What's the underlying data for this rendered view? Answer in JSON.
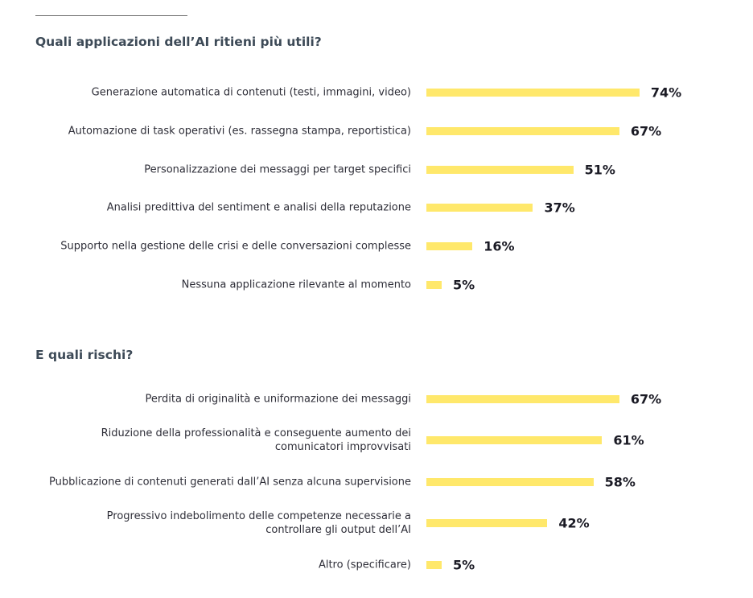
{
  "chart_data": [
    {
      "type": "bar",
      "orientation": "horizontal",
      "title": "Quali applicazioni dell’AI ritieni più utili?",
      "unit": "%",
      "bar_color": "#ffe86b",
      "categories": [
        "Generazione automatica di contenuti (testi, immagini, video)",
        "Automazione di task operativi (es. rassegna stampa, reportistica)",
        "Personalizzazione dei messaggi per target specifici",
        "Analisi predittiva del sentiment e analisi della reputazione",
        "Supporto nella gestione delle crisi e delle conversazioni complesse",
        "Nessuna applicazione rilevante al momento"
      ],
      "values": [
        74,
        67,
        51,
        37,
        16,
        5
      ],
      "value_labels": [
        "74%",
        "67%",
        "51%",
        "37%",
        "16%",
        "5%"
      ],
      "xlim": [
        0,
        100
      ]
    },
    {
      "type": "bar",
      "orientation": "horizontal",
      "title": "E quali rischi?",
      "unit": "%",
      "bar_color": "#ffe86b",
      "categories": [
        "Perdita di originalità e uniformazione dei messaggi",
        "Riduzione della professionalità e conseguente aumento dei comunicatori improvvisati",
        "Pubblicazione di contenuti generati dall’AI senza alcuna supervisione",
        "Progressivo indebolimento delle competenze necessarie a controllare gli output dell’AI",
        "Altro (specificare)"
      ],
      "values": [
        67,
        61,
        58,
        42,
        5
      ],
      "value_labels": [
        "67%",
        "61%",
        "58%",
        "42%",
        "5%"
      ],
      "xlim": [
        0,
        100
      ]
    }
  ]
}
